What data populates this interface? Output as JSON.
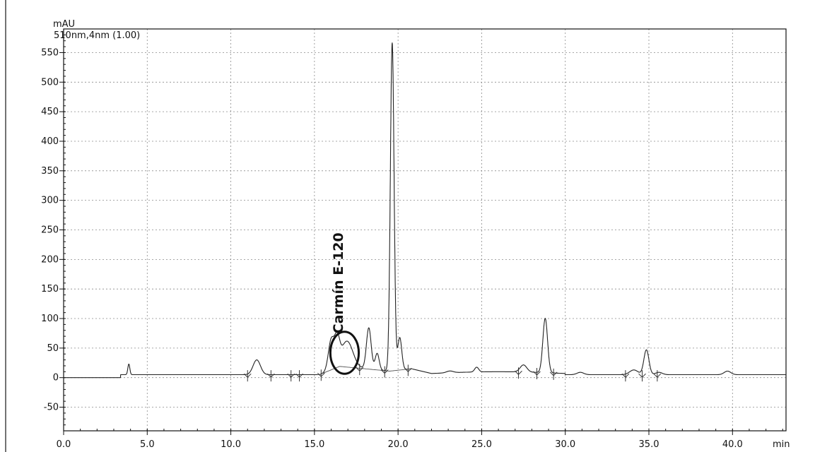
{
  "chart_data": {
    "type": "line",
    "ylabel": "mAU",
    "xlabel": "min",
    "series_label": "510nm,4nm (1.00)",
    "xlim": [
      0,
      43.2
    ],
    "ylim": [
      -90,
      590
    ],
    "grid": true,
    "x_ticks": [
      {
        "value": 0,
        "label": "0.0"
      },
      {
        "value": 5,
        "label": "5.0"
      },
      {
        "value": 10,
        "label": "10.0"
      },
      {
        "value": 15,
        "label": "15.0"
      },
      {
        "value": 20,
        "label": "20.0"
      },
      {
        "value": 25,
        "label": "25.0"
      },
      {
        "value": 30,
        "label": "30.0"
      },
      {
        "value": 35,
        "label": "35.0"
      },
      {
        "value": 40,
        "label": "40.0"
      }
    ],
    "y_ticks": [
      {
        "value": 550,
        "label": "550"
      },
      {
        "value": 500,
        "label": "500"
      },
      {
        "value": 450,
        "label": "450"
      },
      {
        "value": 400,
        "label": "400"
      },
      {
        "value": 350,
        "label": "350"
      },
      {
        "value": 300,
        "label": "300"
      },
      {
        "value": 250,
        "label": "250"
      },
      {
        "value": 200,
        "label": "200"
      },
      {
        "value": 150,
        "label": "150"
      },
      {
        "value": 100,
        "label": "100"
      },
      {
        "value": 50,
        "label": "50"
      },
      {
        "value": 0,
        "label": "0"
      },
      {
        "value": -50,
        "label": "-50"
      }
    ],
    "baseline_level": 5,
    "peaks": [
      {
        "rt": 3.9,
        "height": 18,
        "width": 0.06
      },
      {
        "rt": 11.55,
        "height": 25,
        "width": 0.22
      },
      {
        "rt": 16.0,
        "height": 50,
        "width": 0.17
      },
      {
        "rt": 16.35,
        "height": 44,
        "width": 0.15
      },
      {
        "rt": 16.95,
        "height": 44,
        "width": 0.35
      },
      {
        "rt": 18.25,
        "height": 70,
        "width": 0.14
      },
      {
        "rt": 18.75,
        "height": 28,
        "width": 0.12
      },
      {
        "rt": 19.65,
        "height": 555,
        "width": 0.11
      },
      {
        "rt": 20.1,
        "height": 55,
        "width": 0.12
      },
      {
        "rt": 23.1,
        "height": 3,
        "width": 0.2
      },
      {
        "rt": 24.7,
        "height": 8,
        "width": 0.12
      },
      {
        "rt": 27.5,
        "height": 12,
        "width": 0.2
      },
      {
        "rt": 28.8,
        "height": 92,
        "width": 0.14
      },
      {
        "rt": 30.9,
        "height": 4,
        "width": 0.2
      },
      {
        "rt": 34.1,
        "height": 8,
        "width": 0.25
      },
      {
        "rt": 34.85,
        "height": 42,
        "width": 0.15
      },
      {
        "rt": 35.6,
        "height": 4,
        "width": 0.2
      },
      {
        "rt": 39.7,
        "height": 6,
        "width": 0.2
      }
    ],
    "integration_markers": [
      11.0,
      12.4,
      13.6,
      14.1,
      15.4,
      17.7,
      19.2,
      20.6,
      27.2,
      28.3,
      29.3,
      33.6,
      34.6,
      35.5
    ],
    "annotations": [
      {
        "text": "Carmín E-120",
        "x": 16.7,
        "y": 160,
        "rotate": -90
      }
    ],
    "highlight_ellipse": {
      "cx": 16.8,
      "cy": 42,
      "rx": 0.85,
      "ry": 52
    }
  }
}
